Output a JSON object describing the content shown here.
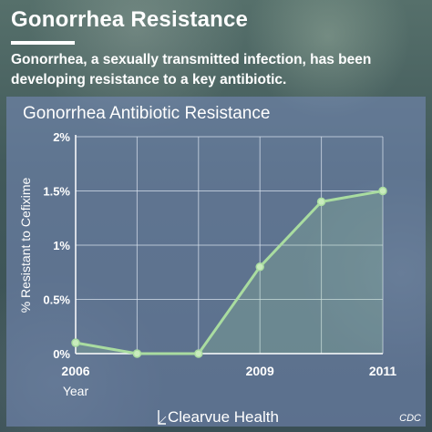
{
  "header": {
    "title": "Gonorrhea Resistance",
    "subtitle": "Gonorrhea, a sexually transmitted infection, has been developing resistance to a key antibiotic."
  },
  "footer": {
    "brand": "Clearvue Health",
    "source": "CDC"
  },
  "colors": {
    "line": "#a9dca0",
    "point_fill": "#c8ecbc",
    "area": "#9fd59a",
    "grid": "#d7e0ec",
    "panel": "#7a8cbf"
  },
  "chart_data": {
    "type": "line",
    "title": "Gonorrhea Antibiotic Resistance",
    "xlabel": "Year",
    "ylabel": "% Resistant to Cefixime",
    "x": [
      2006,
      2007,
      2008,
      2009,
      2010,
      2011
    ],
    "x_tick_labels": [
      "2006",
      "",
      "",
      "2009",
      "",
      "2011"
    ],
    "series": [
      {
        "values": [
          0.1,
          0.0,
          0.0,
          0.8,
          1.4,
          1.5
        ]
      }
    ],
    "ylim": [
      0,
      2
    ],
    "y_ticks": [
      0,
      0.5,
      1,
      1.5,
      2
    ],
    "y_tick_labels": [
      "0%",
      "0.5%",
      "1%",
      "1.5%",
      "2%"
    ],
    "grid": true
  }
}
